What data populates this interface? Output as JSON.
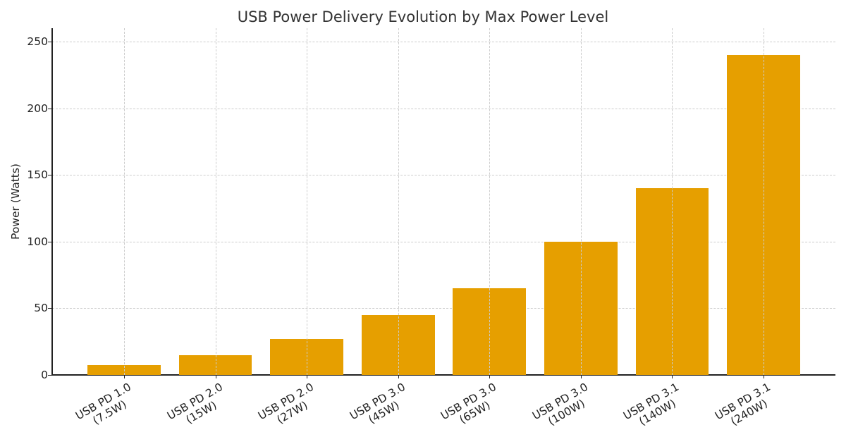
{
  "chart_data": {
    "type": "bar",
    "title": "USB Power Delivery Evolution by Max Power Level",
    "xlabel": "",
    "ylabel": "Power (Watts)",
    "ylim": [
      0,
      260
    ],
    "yticks": [
      0,
      50,
      100,
      150,
      200,
      250
    ],
    "grid": true,
    "legend": null,
    "bar_color": "#E69F00",
    "categories": [
      "USB PD 1.0\n(7.5W)",
      "USB PD 2.0\n(15W)",
      "USB PD 2.0\n(27W)",
      "USB PD 3.0\n(45W)",
      "USB PD 3.0\n(65W)",
      "USB PD 3.0\n(100W)",
      "USB PD 3.1\n(140W)",
      "USB PD 3.1\n(240W)"
    ],
    "category_lines": [
      [
        "USB PD 1.0",
        "(7.5W)"
      ],
      [
        "USB PD 2.0",
        "(15W)"
      ],
      [
        "USB PD 2.0",
        "(27W)"
      ],
      [
        "USB PD 3.0",
        "(45W)"
      ],
      [
        "USB PD 3.0",
        "(65W)"
      ],
      [
        "USB PD 3.0",
        "(100W)"
      ],
      [
        "USB PD 3.1",
        "(140W)"
      ],
      [
        "USB PD 3.1",
        "(240W)"
      ]
    ],
    "values": [
      7.5,
      15,
      27,
      45,
      65,
      100,
      140,
      240
    ]
  }
}
